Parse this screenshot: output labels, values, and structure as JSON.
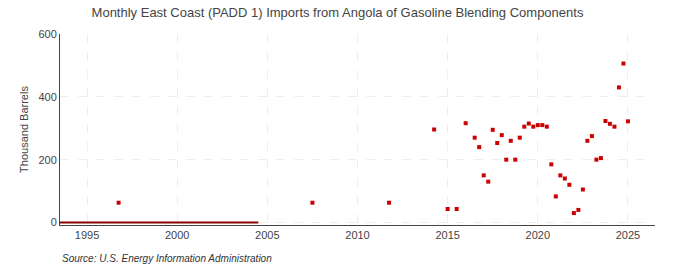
{
  "chart_data": {
    "type": "scatter",
    "title": "Monthly East Coast (PADD 1) Imports from Angola of Gasoline Blending Components",
    "ylabel": "Thousand Barrels",
    "source": "Source: U.S. Energy Information Administration",
    "xlim": [
      1993.5,
      2026.5
    ],
    "ylim": [
      -8,
      600
    ],
    "xticks": [
      1995,
      2000,
      2005,
      2010,
      2015,
      2020,
      2025
    ],
    "yticks": [
      0,
      200,
      400,
      600
    ],
    "grid": true,
    "series": [
      {
        "type": "line",
        "color": "#8b0000",
        "line_style": "solid",
        "x": [
          1993.5,
          2004.5
        ],
        "values": [
          0,
          0
        ]
      },
      {
        "type": "scatter",
        "color": "#cc0000",
        "marker": "square",
        "x": [
          1996.75,
          2007.5,
          2011.75,
          2014.25,
          2015.0,
          2015.5,
          2016.0,
          2016.5,
          2016.75,
          2017.0,
          2017.25,
          2017.5,
          2017.75,
          2018.0,
          2018.25,
          2018.5,
          2018.75,
          2019.0,
          2019.25,
          2019.5,
          2019.75,
          2020.0,
          2020.25,
          2020.5,
          2020.75,
          2021.0,
          2021.25,
          2021.5,
          2021.75,
          2022.0,
          2022.25,
          2022.5,
          2022.75,
          2023.0,
          2023.25,
          2023.5,
          2023.75,
          2024.0,
          2024.25,
          2024.5,
          2024.75,
          2025.0
        ],
        "values": [
          63,
          63,
          63,
          296,
          43,
          43,
          316,
          270,
          240,
          150,
          130,
          295,
          253,
          278,
          200,
          260,
          200,
          270,
          305,
          315,
          305,
          310,
          310,
          305,
          185,
          83,
          150,
          140,
          120,
          30,
          40,
          105,
          260,
          275,
          200,
          205,
          323,
          314,
          305,
          430,
          506,
          322
        ]
      }
    ]
  }
}
